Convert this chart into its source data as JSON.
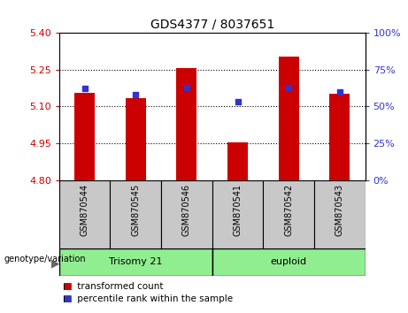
{
  "title": "GDS4377 / 8037651",
  "samples": [
    "GSM870544",
    "GSM870545",
    "GSM870546",
    "GSM870541",
    "GSM870542",
    "GSM870543"
  ],
  "transformed_count": [
    5.155,
    5.135,
    5.258,
    4.952,
    5.305,
    5.153
  ],
  "percentile_rank": [
    62,
    58,
    63,
    53,
    63,
    60
  ],
  "baseline": 4.8,
  "ylim_left": [
    4.8,
    5.4
  ],
  "ylim_right": [
    0,
    100
  ],
  "yticks_left": [
    4.8,
    4.95,
    5.1,
    5.25,
    5.4
  ],
  "yticks_right": [
    0,
    25,
    50,
    75,
    100
  ],
  "bar_color": "#CC0000",
  "marker_color": "#3333CC",
  "bar_width": 0.4,
  "left_tick_color": "#CC0000",
  "right_tick_color": "#3333CC",
  "title_fontsize": 10,
  "tick_fontsize": 8,
  "sample_label_fontsize": 7,
  "group_label_fontsize": 8,
  "legend_fontsize": 7.5,
  "group_label_left": "Trisomy 21",
  "group_label_right": "euploid",
  "genotype_label": "genotype/variation",
  "legend_line1": "transformed count",
  "legend_line2": "percentile rank within the sample",
  "cell_color": "#c8c8c8",
  "group_color": "#90EE90",
  "plot_bg": "white"
}
